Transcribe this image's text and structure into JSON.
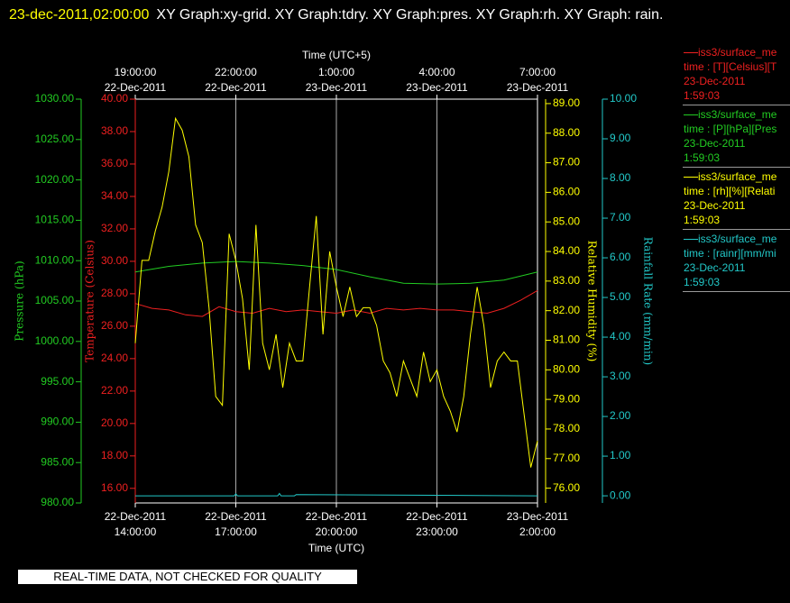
{
  "chart_data": {
    "type": "line",
    "title_time": "23-dec-2011,02:00:00",
    "title": "XY Graph:xy-grid.  XY Graph:tdry.  XY Graph:pres.  XY Graph:rh.  XY Graph: rain.",
    "x_label": "Time (UTC)",
    "x2_label": "Time (UTC+5)",
    "xlim": [
      0,
      12
    ],
    "xticks": [
      {
        "value": 0,
        "label": [
          "22-Dec-2011",
          "14:00:00"
        ]
      },
      {
        "value": 3,
        "label": [
          "22-Dec-2011",
          "17:00:00"
        ]
      },
      {
        "value": 6,
        "label": [
          "22-Dec-2011",
          "20:00:00"
        ]
      },
      {
        "value": 9,
        "label": [
          "22-Dec-2011",
          "23:00:00"
        ]
      },
      {
        "value": 12,
        "label": [
          "23-Dec-2011",
          "2:00:00"
        ]
      }
    ],
    "x2ticks": [
      {
        "value": 0,
        "label": [
          "19:00:00",
          "22-Dec-2011"
        ]
      },
      {
        "value": 3,
        "label": [
          "22:00:00",
          "22-Dec-2011"
        ]
      },
      {
        "value": 6,
        "label": [
          "1:00:00",
          "23-Dec-2011"
        ]
      },
      {
        "value": 9,
        "label": [
          "4:00:00",
          "23-Dec-2011"
        ]
      },
      {
        "value": 12,
        "label": [
          "7:00:00",
          "23-Dec-2011"
        ]
      }
    ],
    "grid": true,
    "y_axes": [
      {
        "label": "Pressure (hPa)",
        "color": "#22cc22",
        "ylim": [
          980,
          1030
        ],
        "yticks": [
          {
            "value": 980,
            "label": "980.00"
          },
          {
            "value": 985,
            "label": "985.00"
          },
          {
            "value": 990,
            "label": "990.00"
          },
          {
            "value": 995,
            "label": "995.00"
          },
          {
            "value": 1000,
            "label": "1000.00"
          },
          {
            "value": 1005,
            "label": "1005.00"
          },
          {
            "value": 1010,
            "label": "1010.00"
          },
          {
            "value": 1015,
            "label": "1015.00"
          },
          {
            "value": 1020,
            "label": "1020.00"
          },
          {
            "value": 1025,
            "label": "1025.00"
          },
          {
            "value": 1030,
            "label": "1030.00"
          }
        ]
      },
      {
        "label": "Temperature (Celsius)",
        "color": "#ee2020",
        "ylim": [
          15.1,
          40
        ],
        "yticks": [
          {
            "value": 16,
            "label": "16.00"
          },
          {
            "value": 18,
            "label": "18.00"
          },
          {
            "value": 20,
            "label": "20.00"
          },
          {
            "value": 22,
            "label": "22.00"
          },
          {
            "value": 24,
            "label": "24.00"
          },
          {
            "value": 26,
            "label": "26.00"
          },
          {
            "value": 28,
            "label": "28.00"
          },
          {
            "value": 30,
            "label": "30.00"
          },
          {
            "value": 32,
            "label": "32.00"
          },
          {
            "value": 34,
            "label": "34.00"
          },
          {
            "value": 36,
            "label": "36.00"
          },
          {
            "value": 38,
            "label": "38.00"
          },
          {
            "value": 40,
            "label": "40.00"
          }
        ]
      },
      {
        "label": "Relative Humidity (%)",
        "color": "#ffff00",
        "ylim": [
          75.5,
          89.15
        ],
        "yticks": [
          {
            "value": 76,
            "label": "76.00"
          },
          {
            "value": 77,
            "label": "77.00"
          },
          {
            "value": 78,
            "label": "78.00"
          },
          {
            "value": 79,
            "label": "79.00"
          },
          {
            "value": 80,
            "label": "80.00"
          },
          {
            "value": 81,
            "label": "81.00"
          },
          {
            "value": 82,
            "label": "82.00"
          },
          {
            "value": 83,
            "label": "83.00"
          },
          {
            "value": 84,
            "label": "84.00"
          },
          {
            "value": 85,
            "label": "85.00"
          },
          {
            "value": 86,
            "label": "86.00"
          },
          {
            "value": 87,
            "label": "87.00"
          },
          {
            "value": 88,
            "label": "88.00"
          },
          {
            "value": 89,
            "label": "89.00"
          }
        ]
      },
      {
        "label": "Rainfall Rate (mm/min)",
        "color": "#22c8c8",
        "ylim": [
          -0.18,
          10
        ],
        "yticks": [
          {
            "value": 0,
            "label": "0.00"
          },
          {
            "value": 1,
            "label": "1.00"
          },
          {
            "value": 2,
            "label": "2.00"
          },
          {
            "value": 3,
            "label": "3.00"
          },
          {
            "value": 4,
            "label": "4.00"
          },
          {
            "value": 5,
            "label": "5.00"
          },
          {
            "value": 6,
            "label": "6.00"
          },
          {
            "value": 7,
            "label": "7.00"
          },
          {
            "value": 8,
            "label": "8.00"
          },
          {
            "value": 9,
            "label": "9.00"
          },
          {
            "value": 10,
            "label": "10.00"
          }
        ]
      }
    ],
    "series": [
      {
        "name": "iss3/surface_me",
        "color": "#ee2020",
        "axis": 1,
        "legend_lines": [
          "time : [T][Celsius][T",
          "23-Dec-2011",
          "1:59:03"
        ],
        "x": [
          0,
          0.5,
          1,
          1.5,
          2,
          2.5,
          3,
          3.5,
          4,
          4.5,
          5,
          5.5,
          6,
          6.5,
          7,
          7.5,
          8,
          8.5,
          9,
          9.5,
          10,
          10.5,
          11,
          11.5,
          12
        ],
        "values": [
          27.4,
          27.1,
          27.0,
          26.7,
          26.6,
          27.2,
          26.9,
          26.8,
          27.1,
          26.9,
          27.0,
          26.9,
          26.8,
          27.0,
          26.8,
          27.1,
          27.0,
          27.1,
          27.0,
          27.0,
          26.9,
          26.8,
          27.1,
          27.6,
          28.2
        ]
      },
      {
        "name": "iss3/surface_me",
        "color": "#22cc22",
        "axis": 0,
        "legend_lines": [
          "time : [P][hPa][Pres",
          "23-Dec-2011",
          "1:59:03"
        ],
        "x": [
          0,
          1,
          2,
          3,
          4,
          5,
          6,
          7,
          8,
          9,
          10,
          11,
          12
        ],
        "values": [
          1008.6,
          1009.3,
          1009.7,
          1009.9,
          1009.7,
          1009.4,
          1008.9,
          1008.0,
          1007.2,
          1007.1,
          1007.2,
          1007.6,
          1008.6
        ]
      },
      {
        "name": "iss3/surface_me",
        "color": "#ffff00",
        "axis": 2,
        "legend_lines": [
          "time : [rh][%][Relati",
          "23-Dec-2011",
          "1:59:03"
        ],
        "x": [
          0,
          0.2,
          0.4,
          0.6,
          0.8,
          1,
          1.2,
          1.4,
          1.6,
          1.8,
          2,
          2.2,
          2.4,
          2.6,
          2.8,
          3,
          3.2,
          3.4,
          3.6,
          3.8,
          4,
          4.2,
          4.4,
          4.6,
          4.8,
          5,
          5.2,
          5.4,
          5.6,
          5.8,
          6,
          6.2,
          6.4,
          6.6,
          6.8,
          7,
          7.2,
          7.4,
          7.6,
          7.8,
          8,
          8.2,
          8.4,
          8.6,
          8.8,
          9,
          9.2,
          9.4,
          9.6,
          9.8,
          10,
          10.2,
          10.4,
          10.6,
          10.8,
          11,
          11.2,
          11.4,
          11.6,
          11.8,
          12
        ],
        "values": [
          80.9,
          83.7,
          83.7,
          84.7,
          85.5,
          86.7,
          88.5,
          88.1,
          87.2,
          84.9,
          84.3,
          82.1,
          79.1,
          78.8,
          84.6,
          83.7,
          82.4,
          80.0,
          84.9,
          80.9,
          80.0,
          81.2,
          79.4,
          80.9,
          80.3,
          80.3,
          82.8,
          85.2,
          81.2,
          84.0,
          82.8,
          81.8,
          82.8,
          81.8,
          82.1,
          82.1,
          81.5,
          80.3,
          79.9,
          79.1,
          80.3,
          79.7,
          79.1,
          80.6,
          79.6,
          80.0,
          79.1,
          78.6,
          77.9,
          79.1,
          81.2,
          82.8,
          81.5,
          79.4,
          80.3,
          80.6,
          80.3,
          80.3,
          78.5,
          76.7,
          77.6
        ]
      },
      {
        "name": "iss3/surface_me",
        "color": "#22c8c8",
        "axis": 3,
        "legend_lines": [
          "time : [rainr][mm/mi",
          "23-Dec-2011",
          "1:59:03"
        ],
        "x": [
          0,
          2.95,
          3.0,
          3.05,
          4.25,
          4.3,
          4.35,
          4.75,
          4.8,
          12
        ],
        "values": [
          0,
          0,
          0.05,
          0,
          0,
          0.06,
          0,
          0,
          0.03,
          0
        ]
      }
    ],
    "footer": "REAL-TIME DATA, NOT CHECKED FOR QUALITY"
  }
}
